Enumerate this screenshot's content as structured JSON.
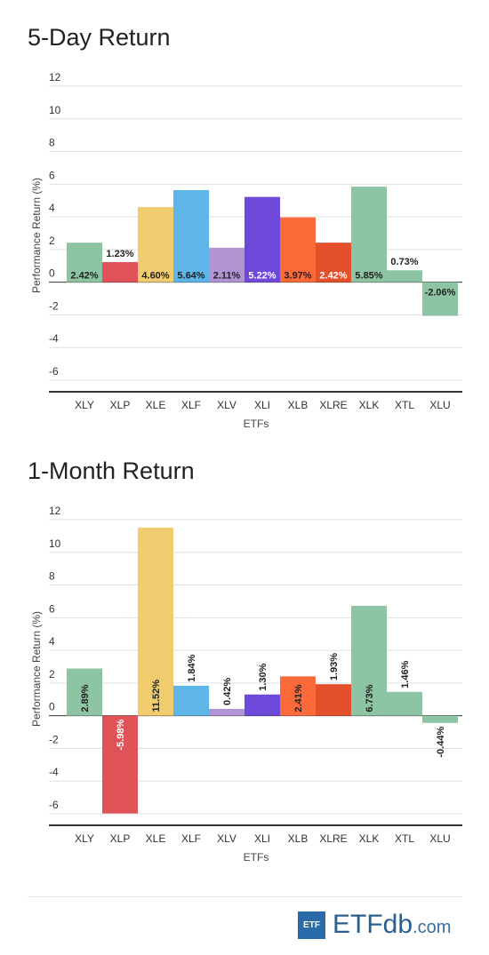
{
  "chart_data": [
    {
      "type": "bar",
      "title": "5-Day Return",
      "xlabel": "ETFs",
      "ylabel": "Performance Return (%)",
      "ylim": [
        -6,
        12
      ],
      "yticks": [
        "12",
        "10",
        "8",
        "6",
        "4",
        "2",
        "0",
        "-2",
        "-4",
        "-6"
      ],
      "grid": true,
      "categories": [
        "XLY",
        "XLP",
        "XLE",
        "XLF",
        "XLV",
        "XLI",
        "XLB",
        "XLRE",
        "XLK",
        "XTL",
        "XLU"
      ],
      "values": [
        2.42,
        1.23,
        4.6,
        5.64,
        2.11,
        5.22,
        3.97,
        2.42,
        5.85,
        0.73,
        -2.06
      ],
      "labels": [
        "2.42%",
        "1.23%",
        "4.60%",
        "5.64%",
        "2.11%",
        "5.22%",
        "3.97%",
        "2.42%",
        "5.85%",
        "0.73%",
        "-2.06%"
      ],
      "colors": [
        "#8dc4a4",
        "#e05257",
        "#f0cc6e",
        "#5eb5e8",
        "#b194d4",
        "#6e48d9",
        "#fd6a3a",
        "#e4502c",
        "#8dc4a4",
        "#8dc4a4",
        "#8dc4a4"
      ]
    },
    {
      "type": "bar",
      "title": "1-Month Return",
      "xlabel": "ETFs",
      "ylabel": "Performance Return (%)",
      "ylim": [
        -6,
        12
      ],
      "yticks": [
        "12",
        "10",
        "8",
        "6",
        "4",
        "2",
        "0",
        "-2",
        "-4",
        "-6"
      ],
      "grid": true,
      "categories": [
        "XLY",
        "XLP",
        "XLE",
        "XLF",
        "XLV",
        "XLI",
        "XLB",
        "XLRE",
        "XLK",
        "XTL",
        "XLU"
      ],
      "values": [
        2.89,
        -5.98,
        11.52,
        1.84,
        0.42,
        1.3,
        2.41,
        1.93,
        6.73,
        1.46,
        -0.44
      ],
      "labels": [
        "2.89%",
        "-5.98%",
        "11.52%",
        "1.84%",
        "0.42%",
        "1.30%",
        "2.41%",
        "1.93%",
        "6.73%",
        "1.46%",
        "-0.44%"
      ],
      "colors": [
        "#8dc4a4",
        "#e05257",
        "#f0cc6e",
        "#5eb5e8",
        "#b194d4",
        "#6e48d9",
        "#fd6a3a",
        "#e4502c",
        "#8dc4a4",
        "#8dc4a4",
        "#8dc4a4"
      ]
    }
  ],
  "footer": {
    "logo_box": "ETF",
    "logo_main": "ETFdb",
    "logo_suffix": ".com"
  }
}
